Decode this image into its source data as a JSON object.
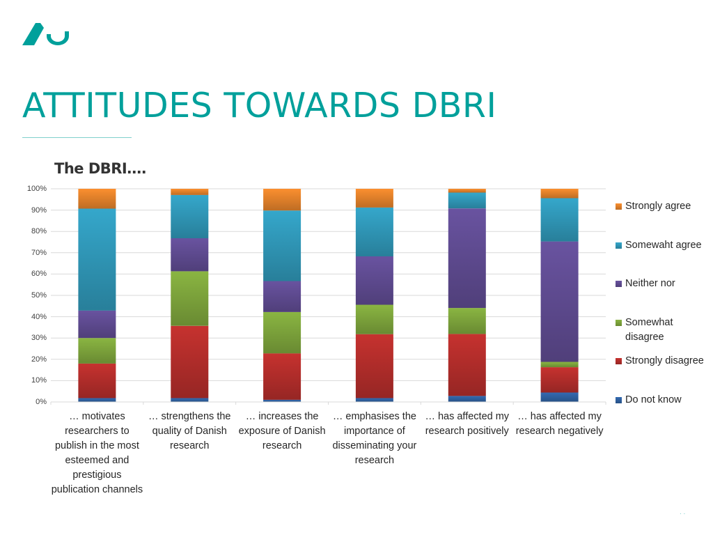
{
  "slide": {
    "title": "ATTITUDES TOWARDS DBRI",
    "page_number": ". ."
  },
  "colors": {
    "brand_teal": "#00a09b"
  },
  "chart_data": {
    "type": "bar",
    "stacked": true,
    "title": "The DBRI….",
    "xlabel": "",
    "ylabel": "",
    "ylim": [
      0,
      100
    ],
    "y_ticks": [
      "0%",
      "10%",
      "20%",
      "30%",
      "40%",
      "50%",
      "60%",
      "70%",
      "80%",
      "90%",
      "100%"
    ],
    "grid": true,
    "legend_position": "right",
    "categories": [
      "… motivates researchers to publish in the most esteemed and prestigious publication channels",
      "… strengthens the quality of Danish research",
      "… increases the exposure of Danish research",
      "… emphasises the importance of disseminating your research",
      "… has affected my research positively",
      "… has affected my research negatively"
    ],
    "series": [
      {
        "name": "Do not know",
        "color": "#2e5f9e",
        "values": [
          1.8,
          1.8,
          1.0,
          1.8,
          2.8,
          4.4
        ]
      },
      {
        "name": "Strongly disagree",
        "color": "#b12d2a",
        "values": [
          16.2,
          33.9,
          21.8,
          30.0,
          29.1,
          11.9
        ]
      },
      {
        "name": "Somewhat disagree",
        "color": "#7ba23b",
        "values": [
          12.0,
          25.6,
          19.4,
          13.8,
          12.2,
          2.5
        ]
      },
      {
        "name": "Neither nor",
        "color": "#5e4a8f",
        "values": [
          12.9,
          15.5,
          14.5,
          22.7,
          46.7,
          56.5
        ]
      },
      {
        "name": "Somewaht agree",
        "color": "#2f95b5",
        "values": [
          47.8,
          20.3,
          33.1,
          22.9,
          7.4,
          20.3
        ]
      },
      {
        "name": "Strongly agree",
        "color": "#e0802a",
        "values": [
          9.3,
          2.9,
          10.2,
          8.8,
          1.8,
          4.4
        ]
      }
    ]
  }
}
